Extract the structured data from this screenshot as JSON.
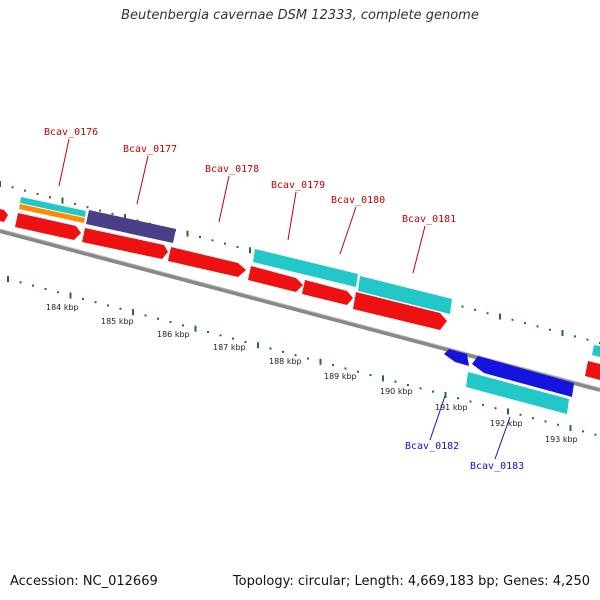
{
  "header": {
    "title": "Beutenbergia cavernae DSM 12333, complete genome"
  },
  "footer": {
    "accession": "Accession: NC_012669",
    "summary": "Topology: circular; Length: 4,669,183 bp; Genes: 4,250"
  },
  "colors": {
    "forward_label": "#cc0000",
    "reverse_label": "#1010cc",
    "cds_red": "#ee1111",
    "gene_cyan": "#22c8c8",
    "gene_orange": "#ff8c00",
    "gene_purple": "#4a3e88",
    "cds_blue": "#1414dd",
    "backbone": "#888888",
    "ticks": "#1a7a1a"
  },
  "ticks": [
    {
      "label": "184 kbp"
    },
    {
      "label": "185 kbp"
    },
    {
      "label": "186 kbp"
    },
    {
      "label": "187 kbp"
    },
    {
      "label": "188 kbp"
    },
    {
      "label": "189 kbp"
    },
    {
      "label": "190 kbp"
    },
    {
      "label": "191 kbp"
    },
    {
      "label": "192 kbp"
    },
    {
      "label": "193 kbp"
    }
  ],
  "gene_labels": [
    {
      "id": "Bcav_0176",
      "strand": "forward"
    },
    {
      "id": "Bcav_0177",
      "strand": "forward"
    },
    {
      "id": "Bcav_0178",
      "strand": "forward"
    },
    {
      "id": "Bcav_0179",
      "strand": "forward"
    },
    {
      "id": "Bcav_0180",
      "strand": "forward"
    },
    {
      "id": "Bcav_0181",
      "strand": "forward"
    },
    {
      "id": "Bcav_0182",
      "strand": "reverse"
    },
    {
      "id": "Bcav_0183",
      "strand": "reverse"
    }
  ]
}
